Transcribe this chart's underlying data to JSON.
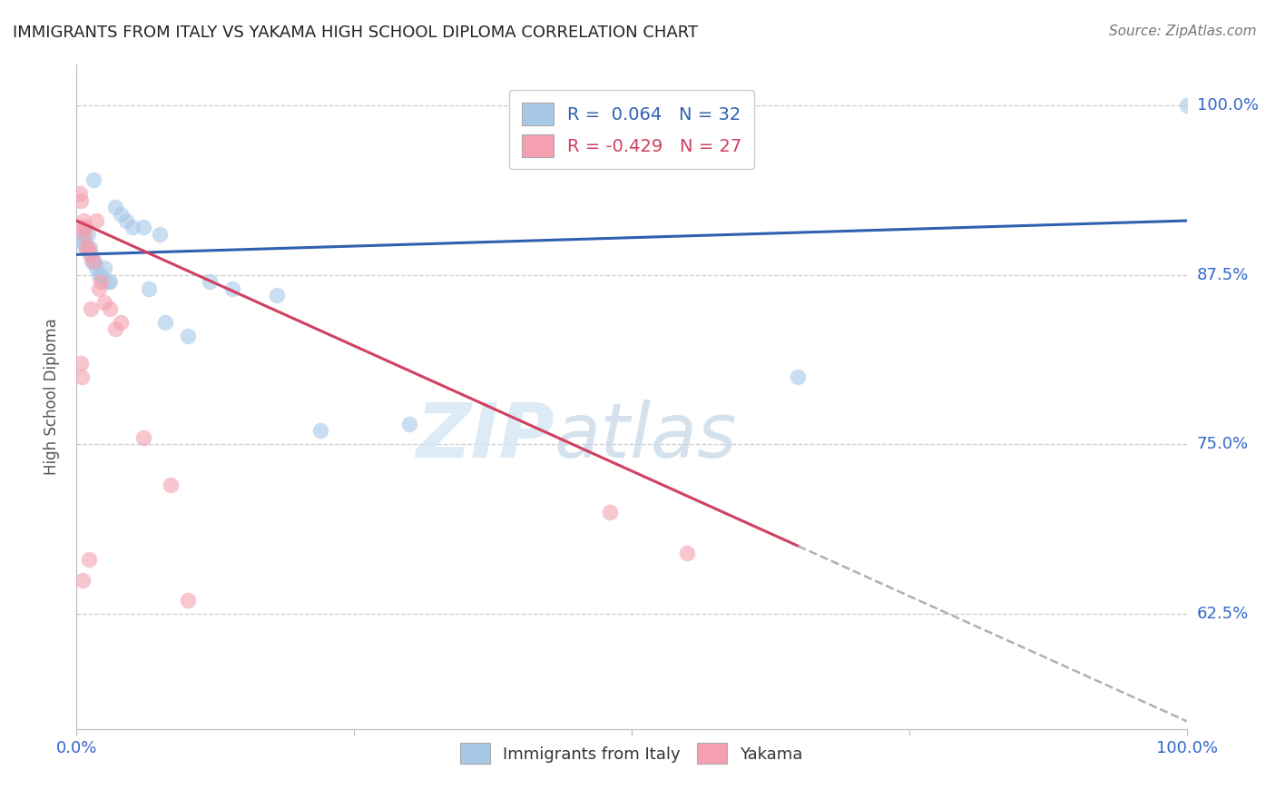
{
  "title": "IMMIGRANTS FROM ITALY VS YAKAMA HIGH SCHOOL DIPLOMA CORRELATION CHART",
  "source": "Source: ZipAtlas.com",
  "ylabel": "High School Diploma",
  "x_min": 0.0,
  "x_max": 100.0,
  "y_min": 54.0,
  "y_max": 103.0,
  "y_ticks": [
    62.5,
    75.0,
    87.5,
    100.0
  ],
  "blue_r": 0.064,
  "blue_n": 32,
  "pink_r": -0.429,
  "pink_n": 27,
  "blue_color": "#a8c8e8",
  "pink_color": "#f4a0b0",
  "blue_line_color": "#3060b0",
  "pink_line_color": "#d04060",
  "blue_scatter_x": [
    1.5,
    3.5,
    4.0,
    4.5,
    5.0,
    6.0,
    7.5,
    0.3,
    0.5,
    0.7,
    0.8,
    1.0,
    1.2,
    1.3,
    1.4,
    1.6,
    1.8,
    2.0,
    2.2,
    2.5,
    2.8,
    3.0,
    6.5,
    8.0,
    10.0,
    12.0,
    14.0,
    18.0,
    22.0,
    30.0,
    65.0,
    100.0
  ],
  "blue_scatter_y": [
    94.5,
    92.5,
    92.0,
    91.5,
    91.0,
    91.0,
    90.5,
    90.0,
    90.5,
    90.0,
    89.5,
    90.5,
    89.5,
    89.0,
    88.5,
    88.5,
    88.0,
    87.5,
    87.5,
    88.0,
    87.0,
    87.0,
    86.5,
    84.0,
    83.0,
    87.0,
    86.5,
    86.0,
    76.0,
    76.5,
    80.0,
    100.0
  ],
  "pink_scatter_x": [
    0.3,
    0.4,
    0.5,
    0.6,
    0.7,
    0.8,
    0.9,
    1.0,
    1.2,
    1.5,
    1.8,
    2.0,
    2.2,
    2.5,
    3.0,
    3.5,
    4.0,
    6.0,
    1.3,
    0.35,
    0.45,
    0.55,
    1.1,
    8.5,
    10.0,
    48.0,
    55.0
  ],
  "pink_scatter_y": [
    93.5,
    93.0,
    91.0,
    91.5,
    90.5,
    91.0,
    89.5,
    89.5,
    89.0,
    88.5,
    91.5,
    86.5,
    87.0,
    85.5,
    85.0,
    83.5,
    84.0,
    75.5,
    85.0,
    81.0,
    80.0,
    65.0,
    66.5,
    72.0,
    63.5,
    70.0,
    67.0
  ],
  "watermark_top": "ZIP",
  "watermark_bot": "atlas",
  "pink_line_solid_end_x": 65.0,
  "pink_line_dashed_end_x": 100.0
}
